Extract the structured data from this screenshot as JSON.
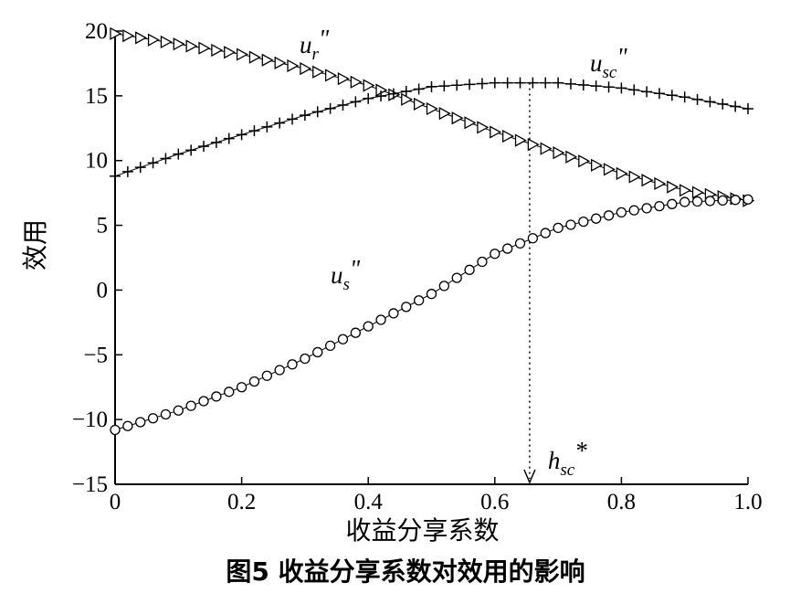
{
  "caption": "图5    收益分享系数对效用的影响",
  "chart_data": {
    "type": "line",
    "xlabel": "收益分享系数",
    "ylabel": "效用",
    "xlim": [
      0,
      1.0
    ],
    "ylim": [
      -15,
      20
    ],
    "xticks": [
      "0",
      "0.2",
      "0.4",
      "0.6",
      "0.8",
      "1.0"
    ],
    "yticks": [
      "−15",
      "−10",
      "−5",
      "0",
      "5",
      "10",
      "15",
      "20"
    ],
    "grid": false,
    "series": [
      {
        "name": "u_r\"",
        "label_base": "u",
        "label_sub": "r",
        "label_sup": "\"",
        "marker": "triangle-right",
        "x": [
          0,
          0.1,
          0.2,
          0.3,
          0.4,
          0.5,
          0.6,
          0.7,
          0.8,
          0.9,
          1.0
        ],
        "y": [
          19.8,
          19.0,
          18.2,
          17.1,
          15.8,
          14.0,
          12.2,
          10.6,
          9.0,
          7.7,
          6.9
        ]
      },
      {
        "name": "u_sc\"",
        "label_base": "u",
        "label_sub": "sc",
        "label_sup": "\"",
        "marker": "plus",
        "x": [
          0,
          0.1,
          0.2,
          0.3,
          0.4,
          0.5,
          0.6,
          0.65,
          0.7,
          0.8,
          0.9,
          1.0
        ],
        "y": [
          8.8,
          10.5,
          12.0,
          13.5,
          14.8,
          15.7,
          16.0,
          16.0,
          16.0,
          15.6,
          14.9,
          14.0
        ]
      },
      {
        "name": "u_s\"",
        "label_base": "u",
        "label_sub": "s",
        "label_sup": "\"",
        "marker": "circle",
        "x": [
          0,
          0.1,
          0.2,
          0.3,
          0.4,
          0.5,
          0.6,
          0.7,
          0.8,
          0.9,
          1.0
        ],
        "y": [
          -10.8,
          -9.3,
          -7.5,
          -5.3,
          -2.8,
          -0.3,
          2.8,
          4.8,
          6.0,
          6.8,
          7.0
        ]
      }
    ],
    "annotation": {
      "label_base": "h",
      "label_sub": "sc",
      "label_sup": "*",
      "x": 0.655,
      "y_from": 16.0,
      "line_style": "dotted",
      "arrow": "down"
    }
  }
}
